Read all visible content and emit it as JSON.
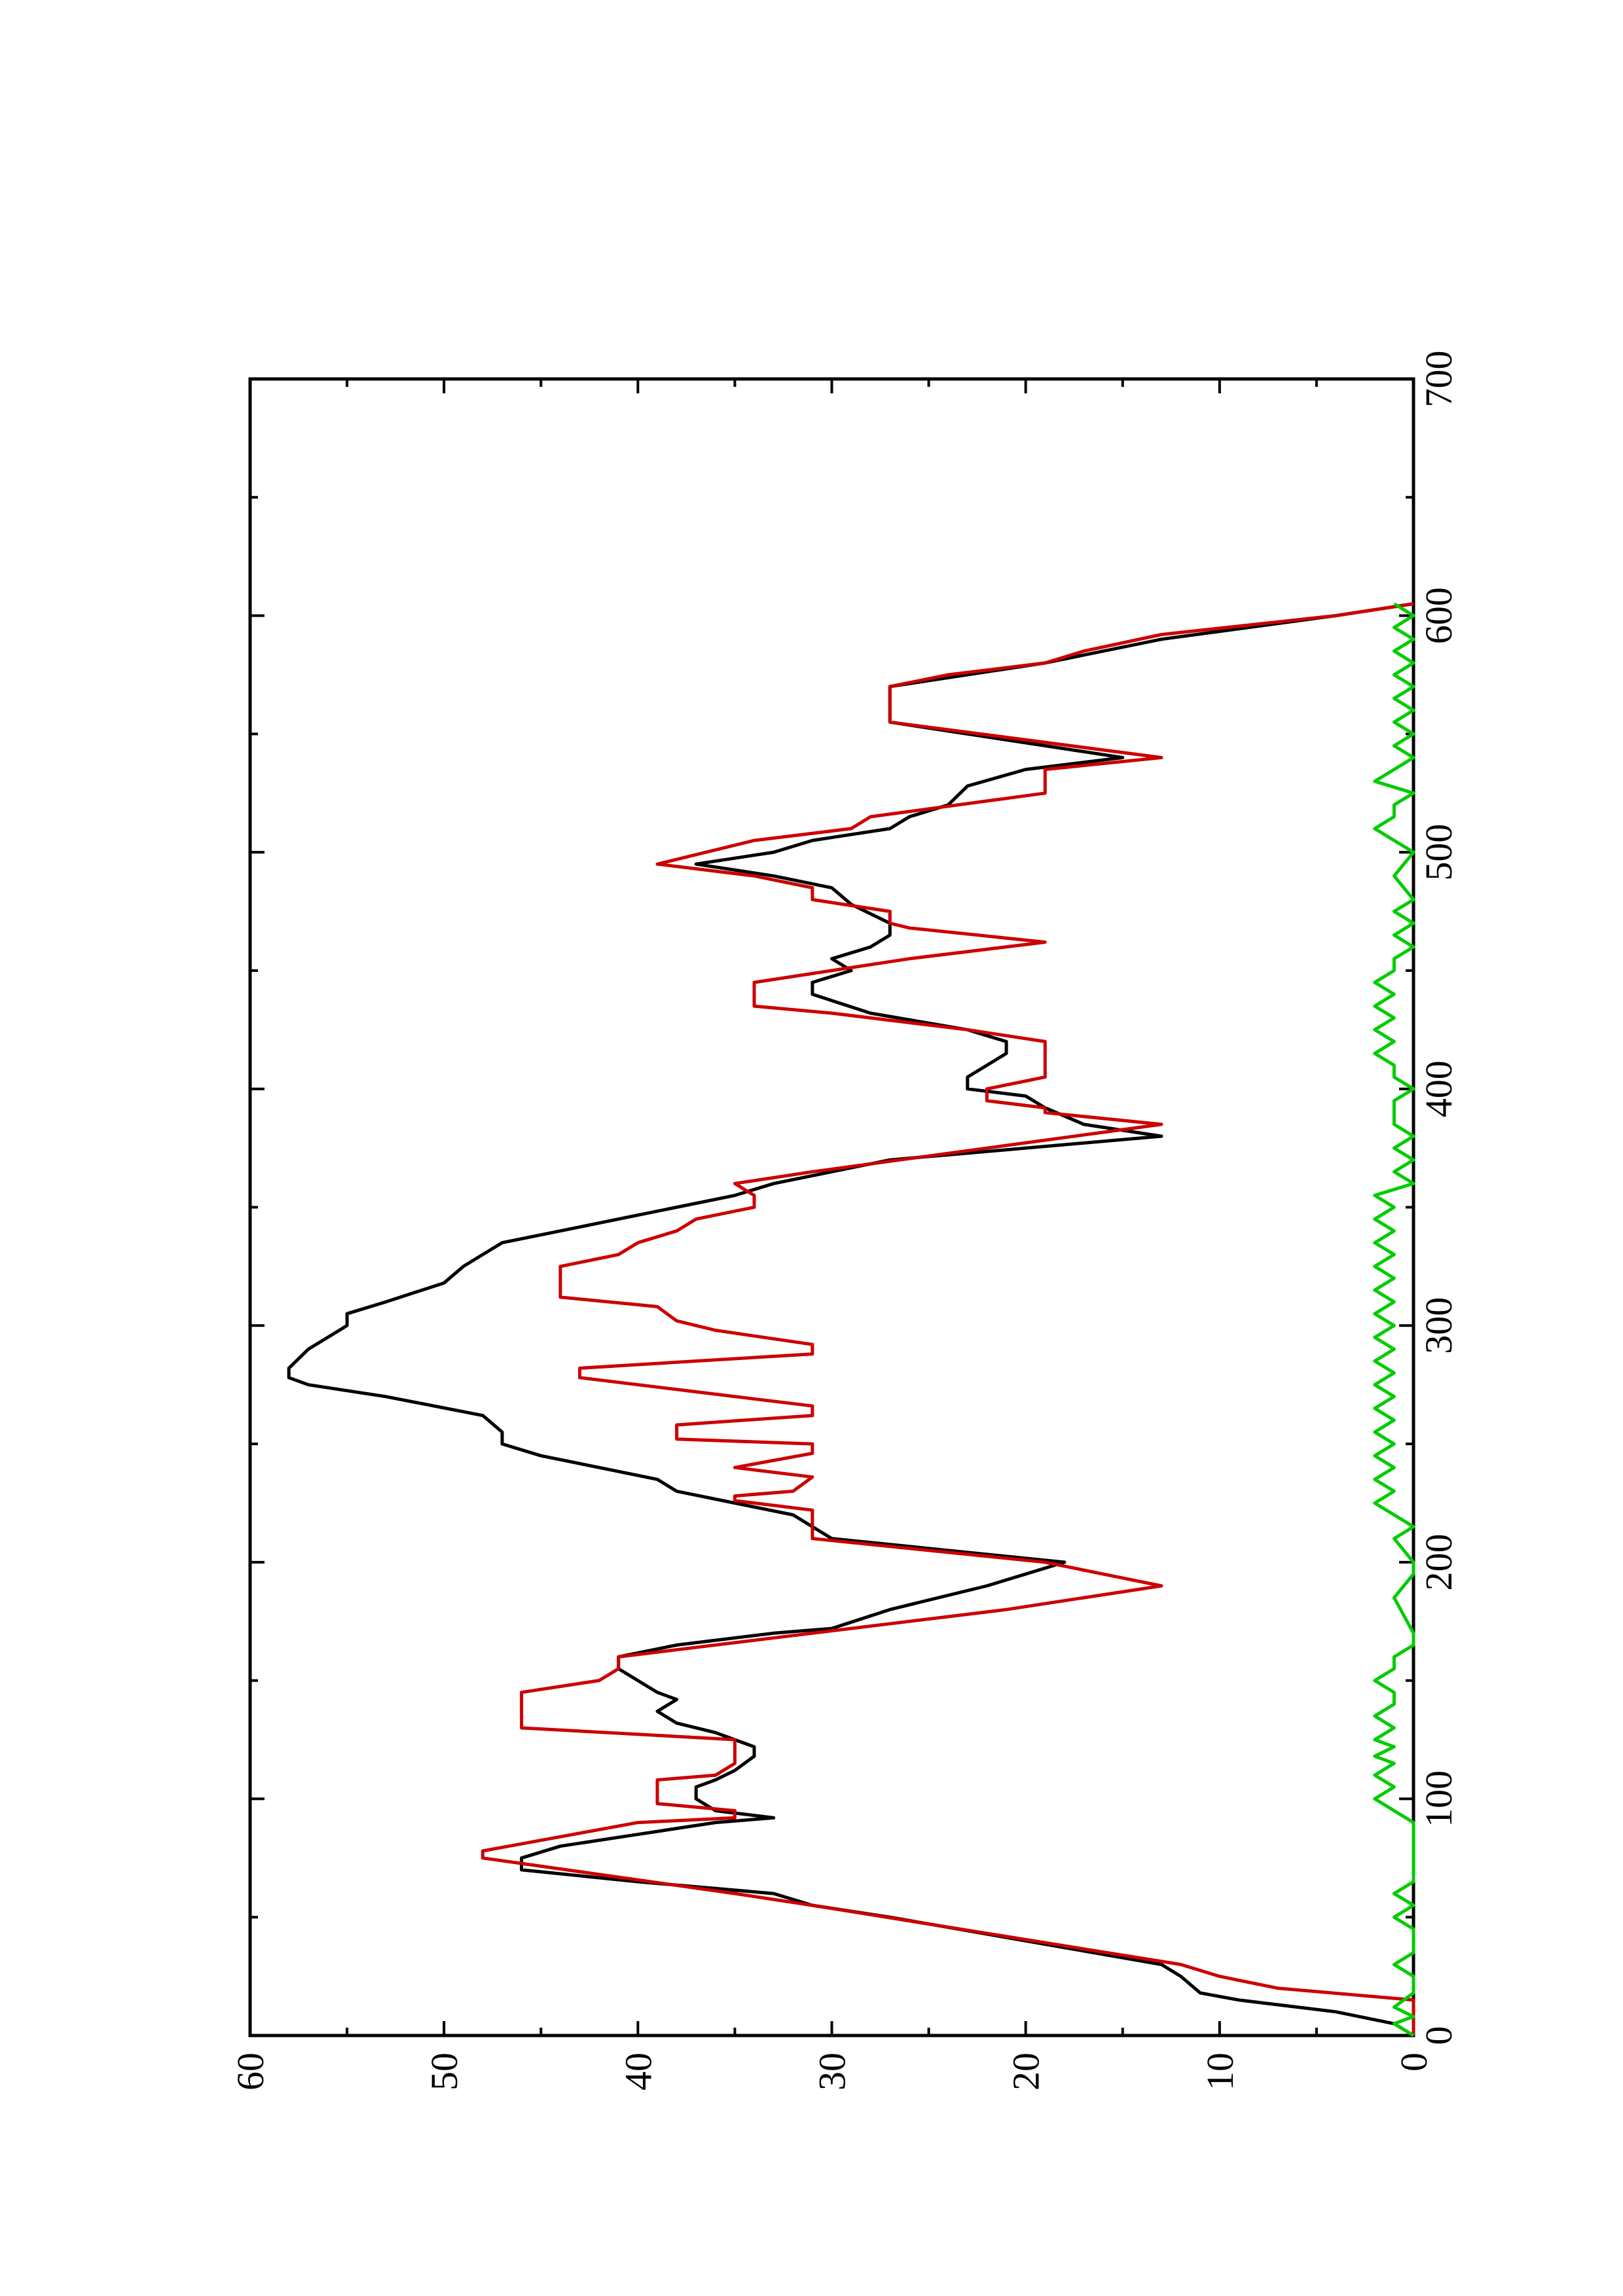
{
  "chart_data": {
    "type": "line",
    "orientation": "rotated 90 degrees counter-clockwise (page is landscape plot printed on a portrait page)",
    "title": "",
    "xlabel": "",
    "ylabel": "",
    "xlim": [
      0,
      700
    ],
    "ylim": [
      0,
      60
    ],
    "x_ticks": [
      0,
      100,
      200,
      300,
      400,
      500,
      600,
      700
    ],
    "y_ticks": [
      0,
      10,
      20,
      30,
      40,
      50,
      60
    ],
    "x_tick_labels": [
      "0",
      "100",
      "200",
      "300",
      "400",
      "500",
      "600",
      "700"
    ],
    "y_tick_labels": [
      "0",
      "10",
      "20",
      "30",
      "40",
      "50",
      "60"
    ],
    "x_minor_step": 50,
    "y_minor_step": 5,
    "grid": false,
    "legend": "none",
    "series": [
      {
        "color": "#000000",
        "points": [
          [
            0,
            0
          ],
          [
            5,
            1
          ],
          [
            10,
            4
          ],
          [
            15,
            9
          ],
          [
            18,
            11
          ],
          [
            25,
            12
          ],
          [
            30,
            13
          ],
          [
            40,
            20
          ],
          [
            50,
            27
          ],
          [
            55,
            31
          ],
          [
            60,
            33
          ],
          [
            65,
            40
          ],
          [
            70,
            46
          ],
          [
            75,
            46
          ],
          [
            80,
            44
          ],
          [
            85,
            40
          ],
          [
            90,
            36
          ],
          [
            92,
            33
          ],
          [
            95,
            36
          ],
          [
            100,
            37
          ],
          [
            105,
            37
          ],
          [
            108,
            36
          ],
          [
            112,
            35
          ],
          [
            118,
            34
          ],
          [
            122,
            34
          ],
          [
            128,
            36
          ],
          [
            132,
            38
          ],
          [
            137,
            39
          ],
          [
            142,
            38
          ],
          [
            145,
            39
          ],
          [
            150,
            40
          ],
          [
            155,
            41
          ],
          [
            160,
            41
          ],
          [
            165,
            38
          ],
          [
            170,
            33
          ],
          [
            172,
            30
          ],
          [
            180,
            27
          ],
          [
            190,
            22
          ],
          [
            200,
            18
          ],
          [
            205,
            24
          ],
          [
            210,
            30
          ],
          [
            215,
            31
          ],
          [
            220,
            32
          ],
          [
            225,
            35
          ],
          [
            230,
            38
          ],
          [
            235,
            39
          ],
          [
            240,
            42
          ],
          [
            245,
            45
          ],
          [
            250,
            47
          ],
          [
            255,
            47
          ],
          [
            262,
            48
          ],
          [
            270,
            53
          ],
          [
            275,
            57
          ],
          [
            278,
            58
          ],
          [
            282,
            58
          ],
          [
            290,
            57
          ],
          [
            295,
            56
          ],
          [
            300,
            55
          ],
          [
            305,
            55
          ],
          [
            310,
            53
          ],
          [
            318,
            50
          ],
          [
            325,
            49
          ],
          [
            330,
            48
          ],
          [
            335,
            47
          ],
          [
            340,
            44
          ],
          [
            345,
            41
          ],
          [
            350,
            38
          ],
          [
            355,
            35
          ],
          [
            360,
            33
          ],
          [
            370,
            27
          ],
          [
            380,
            13
          ],
          [
            385,
            17
          ],
          [
            392,
            19
          ],
          [
            397,
            20
          ],
          [
            400,
            23
          ],
          [
            405,
            23
          ],
          [
            410,
            22
          ],
          [
            415,
            21
          ],
          [
            420,
            21
          ],
          [
            425,
            23
          ],
          [
            432,
            28
          ],
          [
            440,
            31
          ],
          [
            445,
            31
          ],
          [
            450,
            29
          ],
          [
            455,
            30
          ],
          [
            460,
            28
          ],
          [
            465,
            27
          ],
          [
            470,
            27
          ],
          [
            478,
            29
          ],
          [
            485,
            30
          ],
          [
            490,
            33
          ],
          [
            495,
            37
          ],
          [
            500,
            33
          ],
          [
            505,
            31
          ],
          [
            510,
            27
          ],
          [
            515,
            26
          ],
          [
            520,
            24
          ],
          [
            528,
            23
          ],
          [
            535,
            20
          ],
          [
            540,
            15
          ],
          [
            550,
            23
          ],
          [
            555,
            27
          ],
          [
            560,
            27
          ],
          [
            565,
            27
          ],
          [
            570,
            27
          ],
          [
            580,
            19
          ],
          [
            590,
            13
          ],
          [
            600,
            4
          ],
          [
            605,
            0
          ]
        ]
      },
      {
        "color": "#cc0000",
        "points": [
          [
            0,
            0
          ],
          [
            15,
            0
          ],
          [
            20,
            7
          ],
          [
            25,
            10
          ],
          [
            30,
            12
          ],
          [
            55,
            31
          ],
          [
            60,
            35
          ],
          [
            75,
            48
          ],
          [
            78,
            48
          ],
          [
            90,
            40
          ],
          [
            92,
            35
          ],
          [
            95,
            35
          ],
          [
            98,
            39
          ],
          [
            108,
            39
          ],
          [
            110,
            36
          ],
          [
            115,
            35
          ],
          [
            125,
            35
          ],
          [
            130,
            46
          ],
          [
            145,
            46
          ],
          [
            150,
            42
          ],
          [
            155,
            41
          ],
          [
            160,
            41
          ],
          [
            170,
            31
          ],
          [
            180,
            21
          ],
          [
            190,
            13
          ],
          [
            200,
            19
          ],
          [
            210,
            31
          ],
          [
            222,
            31
          ],
          [
            226,
            35
          ],
          [
            228,
            35
          ],
          [
            230,
            32
          ],
          [
            236,
            31
          ],
          [
            240,
            35
          ],
          [
            246,
            31
          ],
          [
            250,
            31
          ],
          [
            252,
            38
          ],
          [
            258,
            38
          ],
          [
            262,
            31
          ],
          [
            266,
            31
          ],
          [
            272,
            37
          ],
          [
            278,
            43
          ],
          [
            282,
            43
          ],
          [
            288,
            31
          ],
          [
            292,
            31
          ],
          [
            298,
            36
          ],
          [
            302,
            38
          ],
          [
            308,
            39
          ],
          [
            312,
            44
          ],
          [
            325,
            44
          ],
          [
            330,
            41
          ],
          [
            335,
            40
          ],
          [
            340,
            38
          ],
          [
            345,
            37
          ],
          [
            350,
            34
          ],
          [
            355,
            34
          ],
          [
            360,
            35
          ],
          [
            365,
            31
          ],
          [
            385,
            13
          ],
          [
            390,
            19
          ],
          [
            392,
            19
          ],
          [
            395,
            22
          ],
          [
            400,
            22
          ],
          [
            405,
            19
          ],
          [
            420,
            19
          ],
          [
            425,
            23
          ],
          [
            432,
            30
          ],
          [
            435,
            34
          ],
          [
            445,
            34
          ],
          [
            450,
            30
          ],
          [
            455,
            26
          ],
          [
            462,
            19
          ],
          [
            468,
            26
          ],
          [
            470,
            27
          ],
          [
            475,
            27
          ],
          [
            480,
            31
          ],
          [
            485,
            31
          ],
          [
            490,
            34
          ],
          [
            495,
            39
          ],
          [
            505,
            34
          ],
          [
            510,
            29
          ],
          [
            515,
            28
          ],
          [
            525,
            19
          ],
          [
            535,
            19
          ],
          [
            540,
            13
          ],
          [
            555,
            27
          ],
          [
            570,
            27
          ],
          [
            575,
            24
          ],
          [
            580,
            19
          ],
          [
            585,
            17
          ],
          [
            592,
            13
          ],
          [
            600,
            4
          ],
          [
            605,
            0
          ]
        ]
      },
      {
        "color": "#00cc00",
        "points": [
          [
            0,
            0
          ],
          [
            5,
            1
          ],
          [
            8,
            0
          ],
          [
            12,
            1
          ],
          [
            18,
            0
          ],
          [
            25,
            0
          ],
          [
            30,
            1
          ],
          [
            35,
            0
          ],
          [
            45,
            0
          ],
          [
            50,
            1
          ],
          [
            55,
            0
          ],
          [
            60,
            1
          ],
          [
            65,
            0
          ],
          [
            90,
            0
          ],
          [
            95,
            1
          ],
          [
            100,
            2
          ],
          [
            105,
            1
          ],
          [
            110,
            2
          ],
          [
            115,
            1
          ],
          [
            118,
            2
          ],
          [
            122,
            1
          ],
          [
            125,
            2
          ],
          [
            130,
            1
          ],
          [
            135,
            2
          ],
          [
            140,
            1
          ],
          [
            145,
            1
          ],
          [
            150,
            2
          ],
          [
            155,
            1
          ],
          [
            160,
            1
          ],
          [
            165,
            0
          ],
          [
            170,
            0
          ],
          [
            185,
            1
          ],
          [
            195,
            0
          ],
          [
            200,
            0
          ],
          [
            210,
            1
          ],
          [
            215,
            0
          ],
          [
            220,
            1
          ],
          [
            225,
            2
          ],
          [
            230,
            1
          ],
          [
            235,
            2
          ],
          [
            240,
            1
          ],
          [
            245,
            2
          ],
          [
            250,
            1
          ],
          [
            255,
            2
          ],
          [
            260,
            1
          ],
          [
            265,
            2
          ],
          [
            270,
            1
          ],
          [
            275,
            2
          ],
          [
            280,
            1
          ],
          [
            285,
            2
          ],
          [
            290,
            1
          ],
          [
            295,
            2
          ],
          [
            300,
            1
          ],
          [
            305,
            2
          ],
          [
            310,
            1
          ],
          [
            315,
            2
          ],
          [
            320,
            1
          ],
          [
            325,
            2
          ],
          [
            330,
            1
          ],
          [
            335,
            2
          ],
          [
            340,
            1
          ],
          [
            345,
            2
          ],
          [
            350,
            1
          ],
          [
            355,
            2
          ],
          [
            360,
            0
          ],
          [
            365,
            1
          ],
          [
            370,
            0
          ],
          [
            375,
            1
          ],
          [
            380,
            0
          ],
          [
            385,
            1
          ],
          [
            395,
            1
          ],
          [
            400,
            0
          ],
          [
            405,
            1
          ],
          [
            410,
            1
          ],
          [
            415,
            2
          ],
          [
            420,
            1
          ],
          [
            425,
            2
          ],
          [
            430,
            1
          ],
          [
            435,
            2
          ],
          [
            440,
            1
          ],
          [
            445,
            2
          ],
          [
            450,
            1
          ],
          [
            455,
            1
          ],
          [
            460,
            0
          ],
          [
            465,
            1
          ],
          [
            470,
            0
          ],
          [
            475,
            1
          ],
          [
            480,
            0
          ],
          [
            490,
            1
          ],
          [
            500,
            0
          ],
          [
            505,
            1
          ],
          [
            510,
            2
          ],
          [
            515,
            1
          ],
          [
            520,
            1
          ],
          [
            525,
            0
          ],
          [
            530,
            2
          ],
          [
            535,
            1
          ],
          [
            540,
            0
          ],
          [
            545,
            1
          ],
          [
            550,
            0
          ],
          [
            555,
            1
          ],
          [
            560,
            0
          ],
          [
            565,
            1
          ],
          [
            570,
            0
          ],
          [
            575,
            1
          ],
          [
            580,
            0
          ],
          [
            585,
            1
          ],
          [
            590,
            0
          ],
          [
            595,
            1
          ],
          [
            600,
            0
          ],
          [
            605,
            1
          ]
        ]
      }
    ]
  }
}
